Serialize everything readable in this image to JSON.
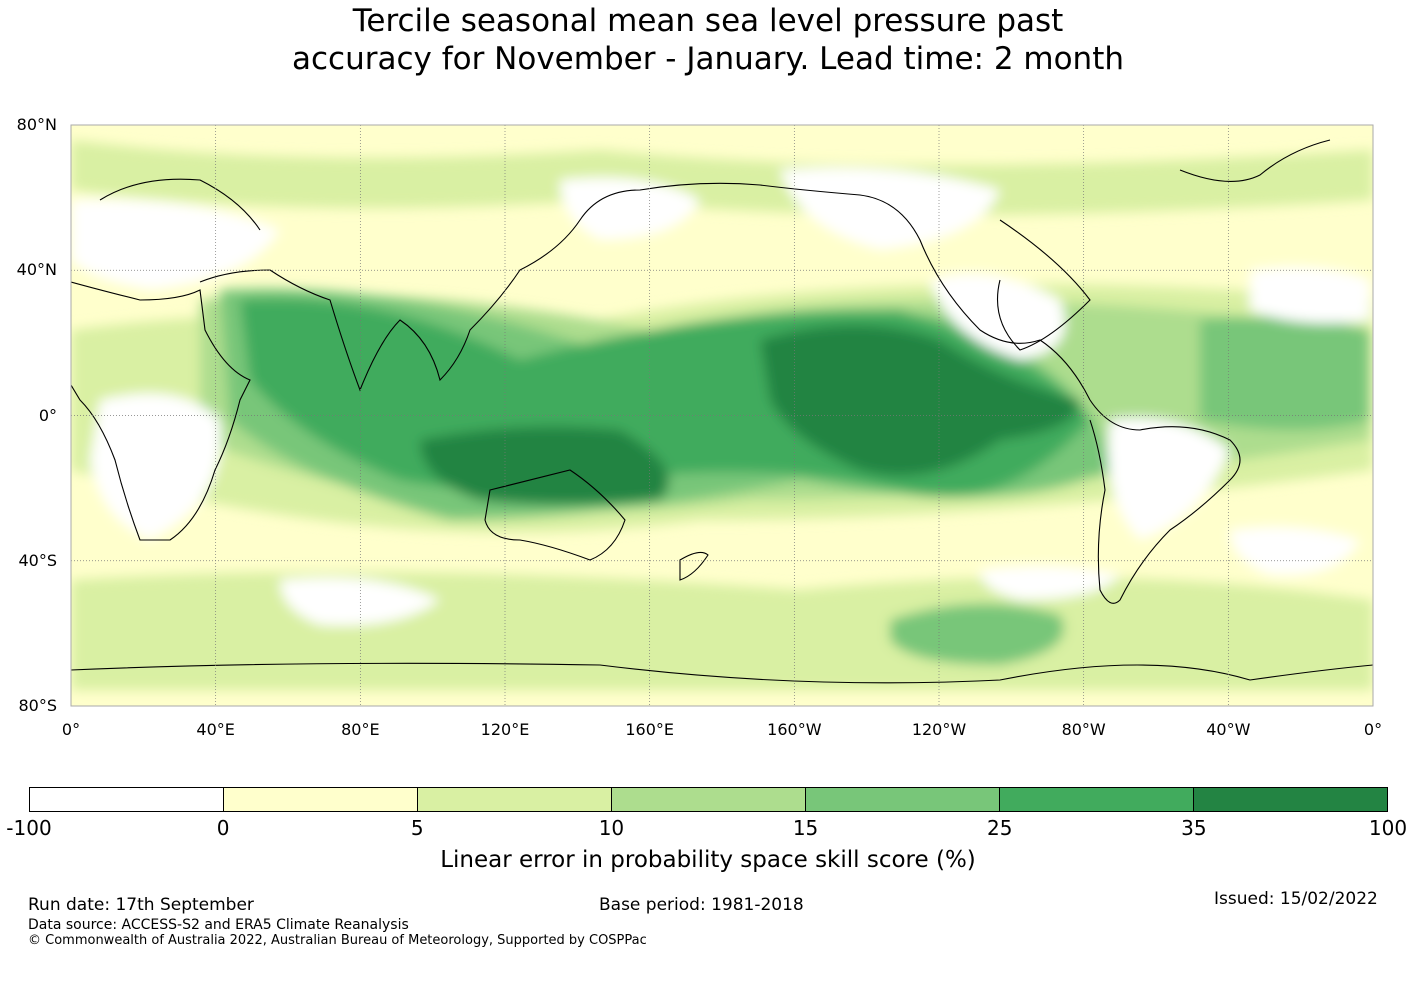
{
  "title": {
    "line1": "Tercile seasonal mean sea level pressure past",
    "line2": "accuracy for November - January. Lead time: 2 month"
  },
  "map": {
    "lat_labels": [
      "80°N",
      "40°N",
      "0°",
      "40°S",
      "80°S"
    ],
    "lon_labels": [
      "0°",
      "40°E",
      "80°E",
      "120°E",
      "160°E",
      "160°W",
      "120°W",
      "80°W",
      "40°W",
      "0°"
    ],
    "ocean_color": "#ffffcc"
  },
  "colorbar": {
    "title": "Linear error in probability space skill score (%)",
    "ticks": [
      "-100",
      "0",
      "5",
      "10",
      "15",
      "25",
      "35",
      "100"
    ],
    "colors": [
      "#ffffff",
      "#ffffcc",
      "#d9f0a3",
      "#addd8e",
      "#78c679",
      "#41ab5d",
      "#238443"
    ]
  },
  "footer": {
    "run_date": "Run date: 17th September",
    "base_period": "Base period: 1981-2018",
    "issued": "Issued: 15/02/2022",
    "data_source": "Data source: ACCESS-S2 and ERA5 Climate Reanalysis",
    "copyright": "© Commonwealth of Australia 2022, Australian Bureau of Meteorology, Supported by COSPPac"
  }
}
